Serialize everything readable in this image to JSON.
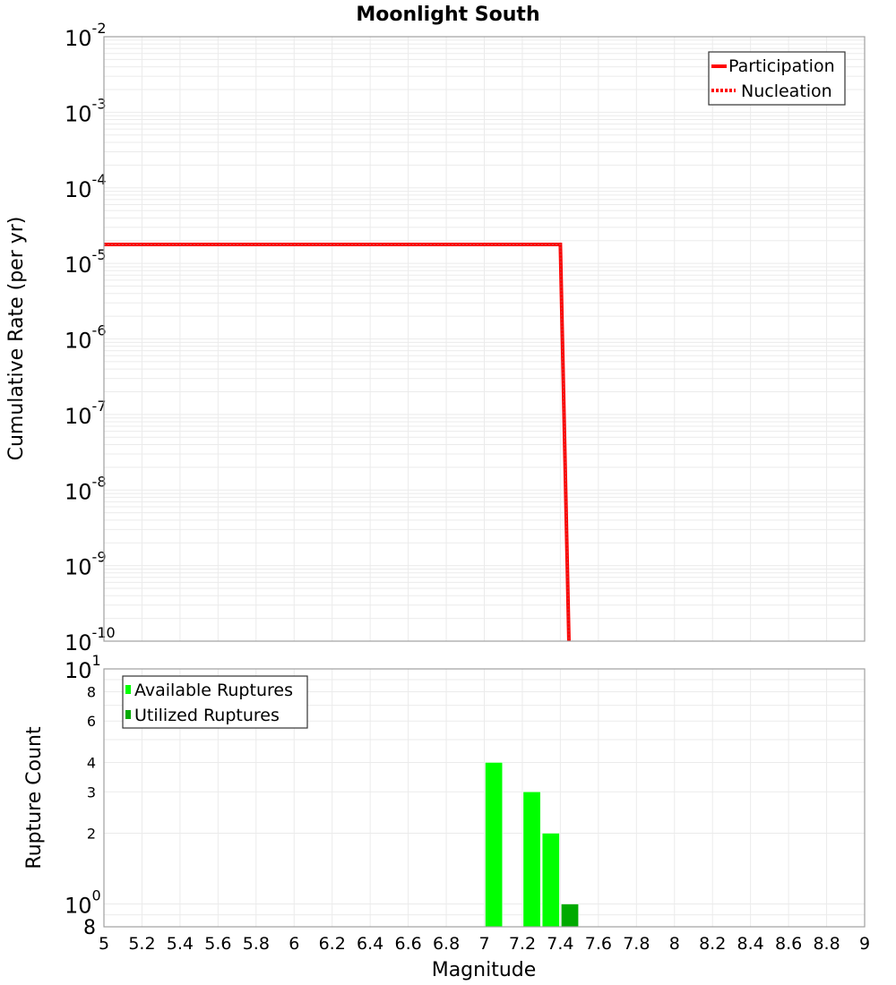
{
  "chart_data": [
    {
      "type": "line",
      "title": "Moonlight South",
      "xlabel": "Magnitude",
      "ylabel": "Cumulative Rate (per yr)",
      "xlim": [
        5,
        9
      ],
      "ylim": [
        1e-10,
        0.01
      ],
      "yscale": "log",
      "grid": true,
      "legend_position": "top-right",
      "y_ticks": [
        "10^-2",
        "10^-3",
        "10^-4",
        "10^-5",
        "10^-6",
        "10^-7",
        "10^-8",
        "10^-9",
        "10^-10"
      ],
      "series": [
        {
          "name": "Participation",
          "style": "solid",
          "color": "#ff0000",
          "x": [
            5.0,
            7.4,
            7.445
          ],
          "y": [
            1.78e-05,
            1.78e-05,
            1e-10
          ]
        },
        {
          "name": "Nucleation",
          "style": "dotted",
          "color": "#ff0000",
          "x": [
            5.0,
            7.4,
            7.445
          ],
          "y": [
            1.78e-05,
            1.78e-05,
            1e-10
          ]
        }
      ]
    },
    {
      "type": "bar",
      "xlabel": "Magnitude",
      "ylabel": "Rupture Count",
      "xlim": [
        5,
        9
      ],
      "ylim": [
        0.8,
        10
      ],
      "yscale": "log",
      "grid": true,
      "legend_position": "top-left",
      "x_ticks": [
        "5",
        "5.2",
        "5.4",
        "5.6",
        "5.8",
        "6",
        "6.2",
        "6.4",
        "6.6",
        "6.8",
        "7",
        "7.2",
        "7.4",
        "7.6",
        "7.8",
        "8",
        "8.2",
        "8.4",
        "8.6",
        "8.8",
        "9"
      ],
      "y_ticks": [
        "10^1",
        "8",
        "6",
        "4",
        "3",
        "2",
        "10^0",
        "8"
      ],
      "series": [
        {
          "name": "Available Ruptures",
          "color": "#00ff00",
          "bins": [
            [
              7.0,
              7.1
            ],
            [
              7.2,
              7.3
            ],
            [
              7.3,
              7.4
            ]
          ],
          "values": [
            4,
            3,
            2
          ]
        },
        {
          "name": "Utilized Ruptures",
          "color": "#00aa00",
          "bins": [
            [
              7.4,
              7.5
            ]
          ],
          "values": [
            1
          ]
        }
      ]
    }
  ],
  "title": "Moonlight South",
  "top": {
    "ylabel": "Cumulative Rate (per yr)",
    "legend": [
      "Participation",
      "Nucleation"
    ]
  },
  "bottom": {
    "ylabel": "Rupture Count",
    "xlabel": "Magnitude",
    "legend": [
      "Available Ruptures",
      "Utilized Ruptures"
    ]
  }
}
